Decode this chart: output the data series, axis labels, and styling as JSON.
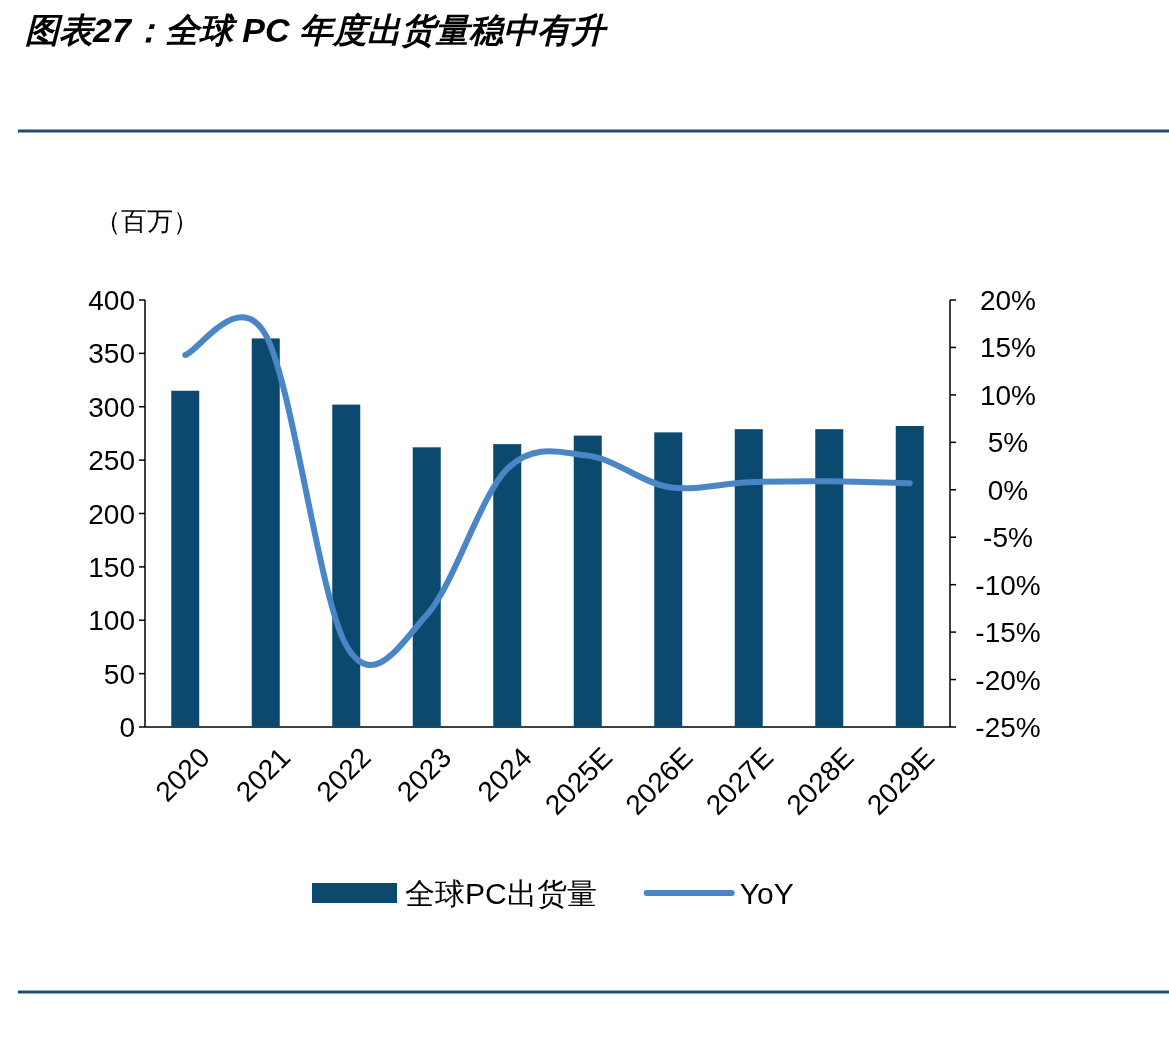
{
  "chart_data": {
    "type": "bar",
    "title": "图表27：全球 PC 年度出货量稳中有升",
    "ylabel": "（百万）",
    "categories": [
      "2020",
      "2021",
      "2022",
      "2023",
      "2024",
      "2025E",
      "2026E",
      "2027E",
      "2028E",
      "2029E"
    ],
    "series": [
      {
        "name": "全球PC出货量",
        "color": "#0b4a6e",
        "values": [
          315,
          364,
          302,
          262,
          265,
          273,
          276,
          279,
          279,
          282
        ]
      },
      {
        "name": "YoY",
        "type": "line",
        "axis": "y2",
        "color": "#4a86c5",
        "values": [
          14.2,
          16.3,
          -16.4,
          -13.2,
          2.2,
          3.6,
          0.3,
          0.8,
          0.9,
          0.7
        ]
      }
    ],
    "ylim": [
      0,
      400
    ],
    "yticks": [
      0,
      50,
      100,
      150,
      200,
      250,
      300,
      350,
      400
    ],
    "y2lim": [
      -25,
      20
    ],
    "y2ticks": [
      {
        "value": -25,
        "label": "-25%"
      },
      {
        "value": -20,
        "label": "-20%"
      },
      {
        "value": -15,
        "label": "-15%"
      },
      {
        "value": -10,
        "label": "-10%"
      },
      {
        "value": -5,
        "label": "-5%"
      },
      {
        "value": 0,
        "label": "0%"
      },
      {
        "value": 5,
        "label": "5%"
      },
      {
        "value": 10,
        "label": "10%"
      },
      {
        "value": 15,
        "label": "15%"
      },
      {
        "value": 20,
        "label": "20%"
      }
    ],
    "legend": "bottom"
  }
}
